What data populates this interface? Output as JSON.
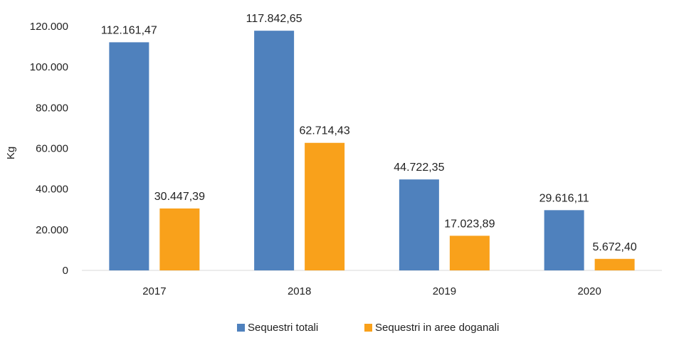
{
  "chart_data": {
    "type": "bar",
    "categories": [
      "2017",
      "2018",
      "2019",
      "2020"
    ],
    "series": [
      {
        "name": "Sequestri totali",
        "color": "#4f81bd",
        "values": [
          112161.47,
          117842.65,
          44722.35,
          29616.11
        ],
        "labels": [
          "112.161,47",
          "117.842,65",
          "44.722,35",
          "29.616,11"
        ]
      },
      {
        "name": "Sequestri in aree doganali",
        "color": "#f9a11b",
        "values": [
          30447.39,
          62714.43,
          17023.89,
          5672.4
        ],
        "labels": [
          "30.447,39",
          "62.714,43",
          "17.023,89",
          "5.672,40"
        ]
      }
    ],
    "ylabel": "Kg",
    "ylim": [
      0,
      120000
    ],
    "yticks": [
      0,
      20000,
      40000,
      60000,
      80000,
      100000,
      120000
    ],
    "ytick_labels": [
      "0",
      "20.000",
      "40.000",
      "60.000",
      "80.000",
      "100.000",
      "120.000"
    ],
    "grid": false,
    "legend": "bottom"
  }
}
